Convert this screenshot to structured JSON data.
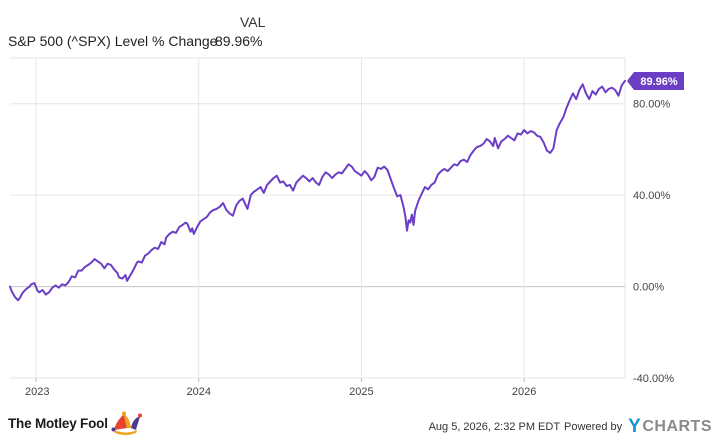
{
  "legend": {
    "column_header": "VAL",
    "series_name": "S&P 500 (^SPX) Level % Change",
    "series_value": "89.96%"
  },
  "footer": {
    "timestamp": "Aug 5, 2026, 2:32 PM EDT",
    "powered_by": "Powered by",
    "brand_y": "Y",
    "brand_rest": "CHARTS",
    "logo_text": "The Motley Fool"
  },
  "colors": {
    "series": "#6b3fc5",
    "zero_line": "#c4c4c4",
    "grid": "#e6e6e6"
  },
  "chart_data": {
    "type": "line",
    "ylim": [
      -40,
      100
    ],
    "yticks": [
      -40,
      0,
      40,
      80
    ],
    "ytick_labels": [
      "-40.00%",
      "0.00%",
      "40.00%",
      "80.00%"
    ],
    "xlim": [
      2022.84,
      2026.62
    ],
    "xticks": [
      2023,
      2024,
      2025,
      2026
    ],
    "xtick_labels": [
      "2023",
      "2024",
      "2025",
      "2026"
    ],
    "grid": true,
    "end_label": "89.96%",
    "series": [
      {
        "values": [
          [
            2022.84,
            0.0
          ],
          [
            2022.85,
            -2.0
          ],
          [
            2022.87,
            -4.5
          ],
          [
            2022.89,
            -6.0
          ],
          [
            2022.9,
            -5.0
          ],
          [
            2022.92,
            -2.5
          ],
          [
            2022.94,
            -1.0
          ],
          [
            2022.96,
            0.0
          ],
          [
            2022.97,
            1.0
          ],
          [
            2022.99,
            1.5
          ],
          [
            2023.01,
            -2.0
          ],
          [
            2023.02,
            -2.5
          ],
          [
            2023.04,
            -1.5
          ],
          [
            2023.06,
            -3.5
          ],
          [
            2023.08,
            -2.5
          ],
          [
            2023.1,
            -0.5
          ],
          [
            2023.12,
            0.5
          ],
          [
            2023.14,
            -0.5
          ],
          [
            2023.16,
            1.0
          ],
          [
            2023.18,
            0.5
          ],
          [
            2023.2,
            2.0
          ],
          [
            2023.22,
            4.5
          ],
          [
            2023.24,
            4.0
          ],
          [
            2023.26,
            7.0
          ],
          [
            2023.28,
            7.0
          ],
          [
            2023.3,
            8.5
          ],
          [
            2023.32,
            9.5
          ],
          [
            2023.34,
            10.5
          ],
          [
            2023.36,
            12.0
          ],
          [
            2023.38,
            11.0
          ],
          [
            2023.4,
            10.0
          ],
          [
            2023.42,
            8.0
          ],
          [
            2023.44,
            10.0
          ],
          [
            2023.46,
            9.5
          ],
          [
            2023.48,
            7.5
          ],
          [
            2023.5,
            6.0
          ],
          [
            2023.51,
            4.0
          ],
          [
            2023.53,
            3.5
          ],
          [
            2023.55,
            5.0
          ],
          [
            2023.56,
            2.5
          ],
          [
            2023.58,
            5.0
          ],
          [
            2023.6,
            7.5
          ],
          [
            2023.62,
            10.5
          ],
          [
            2023.63,
            11.0
          ],
          [
            2023.65,
            10.5
          ],
          [
            2023.67,
            13.5
          ],
          [
            2023.69,
            14.5
          ],
          [
            2023.71,
            16.0
          ],
          [
            2023.73,
            17.0
          ],
          [
            2023.75,
            16.5
          ],
          [
            2023.77,
            19.5
          ],
          [
            2023.79,
            18.5
          ],
          [
            2023.8,
            21.5
          ],
          [
            2023.82,
            23.0
          ],
          [
            2023.84,
            24.0
          ],
          [
            2023.86,
            23.5
          ],
          [
            2023.88,
            26.0
          ],
          [
            2023.9,
            27.0
          ],
          [
            2023.92,
            28.0
          ],
          [
            2023.93,
            27.5
          ],
          [
            2023.95,
            24.0
          ],
          [
            2023.96,
            25.5
          ],
          [
            2023.97,
            23.0
          ],
          [
            2023.99,
            26.0
          ],
          [
            2024.01,
            28.5
          ],
          [
            2024.03,
            29.5
          ],
          [
            2024.05,
            30.5
          ],
          [
            2024.07,
            32.5
          ],
          [
            2024.09,
            33.5
          ],
          [
            2024.11,
            34.0
          ],
          [
            2024.13,
            35.0
          ],
          [
            2024.15,
            36.5
          ],
          [
            2024.17,
            33.5
          ],
          [
            2024.19,
            32.0
          ],
          [
            2024.21,
            31.0
          ],
          [
            2024.23,
            35.5
          ],
          [
            2024.25,
            37.5
          ],
          [
            2024.27,
            38.5
          ],
          [
            2024.3,
            34.0
          ],
          [
            2024.32,
            40.0
          ],
          [
            2024.34,
            41.5
          ],
          [
            2024.36,
            42.5
          ],
          [
            2024.38,
            43.5
          ],
          [
            2024.4,
            41.0
          ],
          [
            2024.42,
            44.5
          ],
          [
            2024.44,
            46.0
          ],
          [
            2024.46,
            47.5
          ],
          [
            2024.48,
            48.5
          ],
          [
            2024.5,
            45.5
          ],
          [
            2024.52,
            46.0
          ],
          [
            2024.54,
            44.0
          ],
          [
            2024.56,
            44.5
          ],
          [
            2024.58,
            42.0
          ],
          [
            2024.6,
            45.5
          ],
          [
            2024.62,
            47.0
          ],
          [
            2024.64,
            48.5
          ],
          [
            2024.66,
            47.5
          ],
          [
            2024.68,
            46.0
          ],
          [
            2024.7,
            47.5
          ],
          [
            2024.72,
            45.5
          ],
          [
            2024.74,
            44.5
          ],
          [
            2024.76,
            48.0
          ],
          [
            2024.78,
            50.0
          ],
          [
            2024.8,
            49.0
          ],
          [
            2024.82,
            47.5
          ],
          [
            2024.84,
            49.0
          ],
          [
            2024.86,
            50.0
          ],
          [
            2024.88,
            49.5
          ],
          [
            2024.9,
            51.5
          ],
          [
            2024.92,
            53.5
          ],
          [
            2024.94,
            52.5
          ],
          [
            2024.96,
            50.5
          ],
          [
            2024.98,
            49.5
          ],
          [
            2025.0,
            48.5
          ],
          [
            2025.02,
            50.5
          ],
          [
            2025.04,
            49.0
          ],
          [
            2025.06,
            46.5
          ],
          [
            2025.08,
            48.0
          ],
          [
            2025.1,
            52.0
          ],
          [
            2025.12,
            51.5
          ],
          [
            2025.14,
            52.5
          ],
          [
            2025.16,
            51.0
          ],
          [
            2025.18,
            47.0
          ],
          [
            2025.2,
            43.0
          ],
          [
            2025.22,
            39.5
          ],
          [
            2025.24,
            40.0
          ],
          [
            2025.26,
            34.5
          ],
          [
            2025.27,
            30.5
          ],
          [
            2025.28,
            24.5
          ],
          [
            2025.29,
            29.0
          ],
          [
            2025.3,
            28.0
          ],
          [
            2025.31,
            31.5
          ],
          [
            2025.32,
            27.0
          ],
          [
            2025.33,
            33.0
          ],
          [
            2025.35,
            37.5
          ],
          [
            2025.37,
            40.5
          ],
          [
            2025.39,
            43.5
          ],
          [
            2025.41,
            42.5
          ],
          [
            2025.43,
            44.5
          ],
          [
            2025.45,
            45.5
          ],
          [
            2025.47,
            49.0
          ],
          [
            2025.49,
            50.5
          ],
          [
            2025.51,
            51.5
          ],
          [
            2025.53,
            50.5
          ],
          [
            2025.55,
            52.0
          ],
          [
            2025.57,
            53.5
          ],
          [
            2025.59,
            53.0
          ],
          [
            2025.61,
            55.0
          ],
          [
            2025.63,
            55.5
          ],
          [
            2025.65,
            54.5
          ],
          [
            2025.67,
            57.5
          ],
          [
            2025.69,
            59.5
          ],
          [
            2025.71,
            61.0
          ],
          [
            2025.73,
            61.5
          ],
          [
            2025.75,
            62.5
          ],
          [
            2025.77,
            64.5
          ],
          [
            2025.79,
            63.5
          ],
          [
            2025.81,
            61.5
          ],
          [
            2025.82,
            65.0
          ],
          [
            2025.84,
            60.5
          ],
          [
            2025.86,
            63.5
          ],
          [
            2025.88,
            64.5
          ],
          [
            2025.9,
            66.0
          ],
          [
            2025.92,
            65.0
          ],
          [
            2025.94,
            64.0
          ],
          [
            2025.96,
            67.0
          ],
          [
            2025.98,
            66.5
          ],
          [
            2026.0,
            68.5
          ],
          [
            2026.02,
            67.0
          ],
          [
            2026.04,
            68.0
          ],
          [
            2026.06,
            67.5
          ],
          [
            2026.08,
            66.0
          ],
          [
            2026.1,
            65.5
          ],
          [
            2026.12,
            63.0
          ],
          [
            2026.14,
            59.5
          ],
          [
            2026.16,
            58.5
          ],
          [
            2026.18,
            60.5
          ],
          [
            2026.2,
            68.5
          ],
          [
            2026.22,
            71.5
          ],
          [
            2026.24,
            74.0
          ],
          [
            2026.26,
            78.0
          ],
          [
            2026.28,
            81.5
          ],
          [
            2026.3,
            84.5
          ],
          [
            2026.32,
            82.0
          ],
          [
            2026.34,
            86.0
          ],
          [
            2026.36,
            88.5
          ],
          [
            2026.38,
            84.5
          ],
          [
            2026.4,
            82.0
          ],
          [
            2026.42,
            85.5
          ],
          [
            2026.44,
            84.0
          ],
          [
            2026.46,
            86.5
          ],
          [
            2026.48,
            87.5
          ],
          [
            2026.5,
            85.0
          ],
          [
            2026.52,
            86.5
          ],
          [
            2026.54,
            87.0
          ],
          [
            2026.56,
            86.0
          ],
          [
            2026.58,
            83.5
          ],
          [
            2026.6,
            88.0
          ],
          [
            2026.62,
            89.96
          ]
        ]
      }
    ]
  }
}
